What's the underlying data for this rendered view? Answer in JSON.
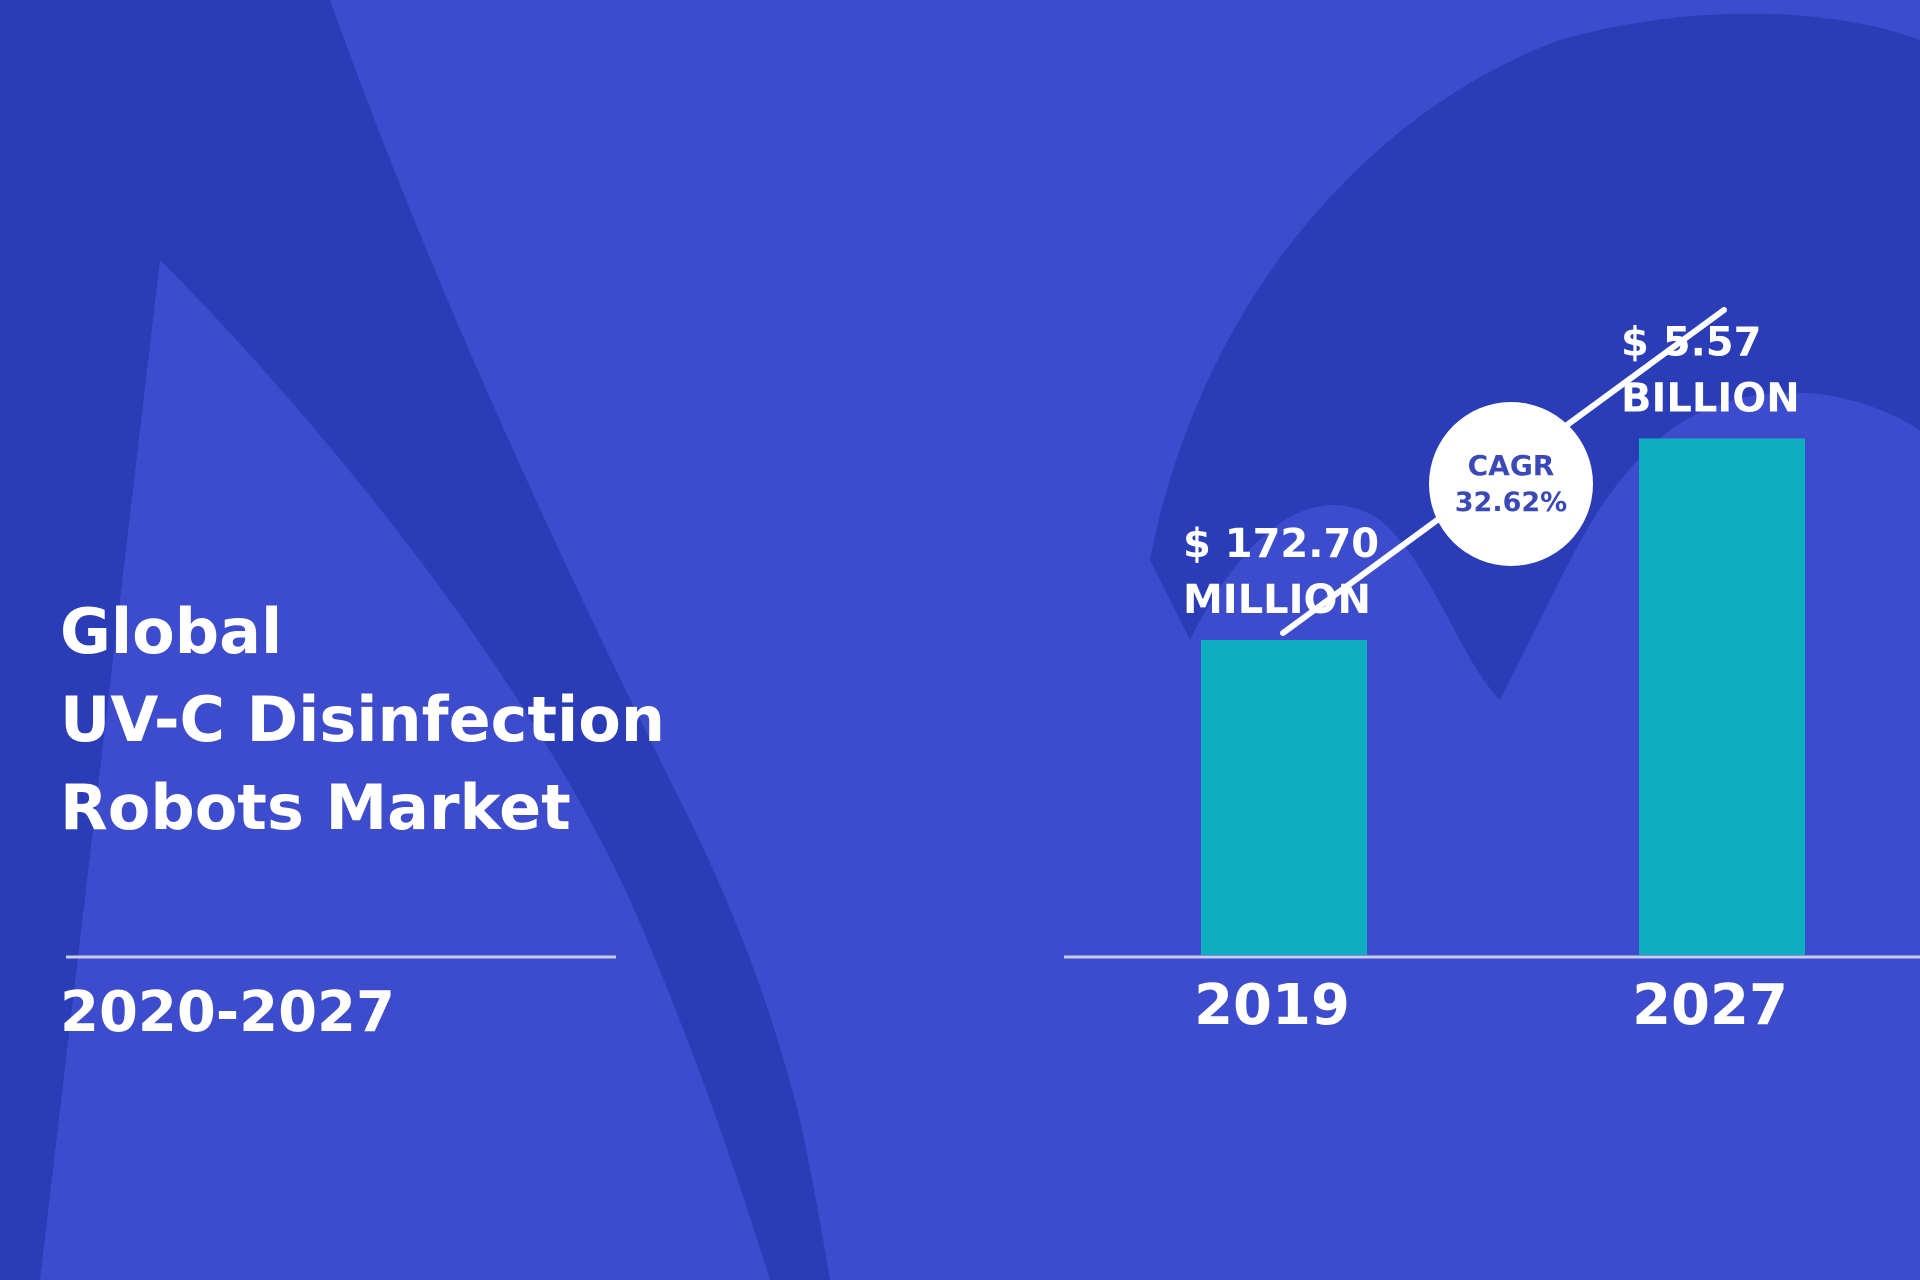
{
  "colors": {
    "background": "#3d4ccc",
    "background_shape": "#2a3cb6",
    "bar": "#0eaebf",
    "text": "#ffffff",
    "cagr_text": "#3a48b8",
    "badge": "#ffffff"
  },
  "title_lines": [
    "Global",
    "UV-C Disinfection",
    "Robots Market"
  ],
  "period": "2020-2027",
  "chart_data": {
    "type": "bar",
    "categories": [
      "2019",
      "2027"
    ],
    "values": [
      172.7,
      5570
    ],
    "unit": "USD million",
    "value_labels": [
      [
        "$ 172.70",
        "MILLION"
      ],
      [
        "$ 5.57",
        "BILLION"
      ]
    ],
    "bar_heights_shown": [
      0.375,
      0.615
    ],
    "annotation": {
      "label": "CAGR",
      "value": "32.62%"
    },
    "grid": false,
    "legend": "none"
  }
}
